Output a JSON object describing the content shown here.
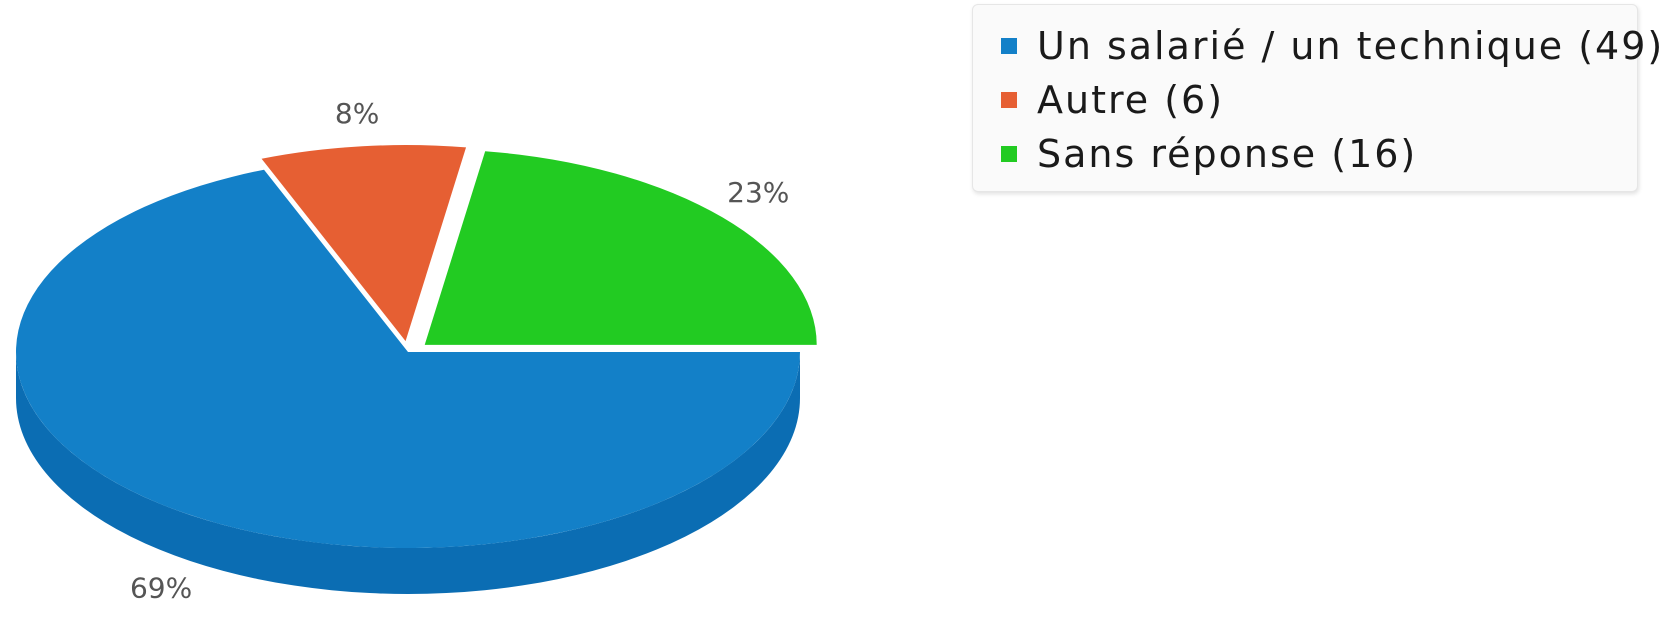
{
  "chart_data": {
    "type": "pie",
    "style": "3d",
    "slices": [
      {
        "label": "Un salarié / un technique (49)",
        "value": 49,
        "percent_label": "69%",
        "color": "#1380c8",
        "side_color": "#0b6db3"
      },
      {
        "label": "Autre (6)",
        "value": 6,
        "percent_label": "8%",
        "color": "#e65f33",
        "side_color": "#cc4f26"
      },
      {
        "label": "Sans réponse (16)",
        "value": 16,
        "percent_label": "23%",
        "color": "#22cb22",
        "side_color": "#16b416"
      }
    ],
    "legend_position": "top-right"
  }
}
